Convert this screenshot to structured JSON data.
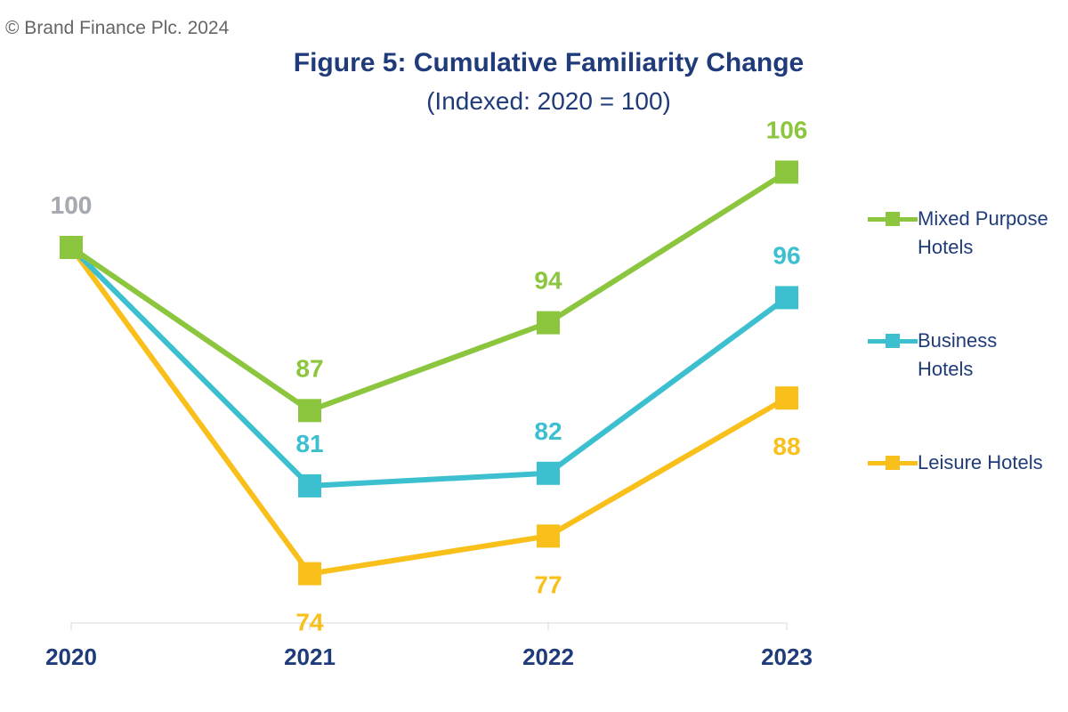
{
  "copyright": "© Brand Finance Plc. 2024",
  "chart_data": {
    "type": "line",
    "title": "Figure 5: Cumulative Familiarity Change",
    "subtitle": "(Indexed: 2020 = 100)",
    "categories": [
      "2020",
      "2021",
      "2022",
      "2023"
    ],
    "ylim": [
      70,
      110
    ],
    "grid": false,
    "legend_position": "right",
    "series": [
      {
        "name": "Mixed Purpose Hotels",
        "color": "#8cc63f",
        "values": [
          100,
          87,
          94,
          106
        ],
        "label_pos": [
          "above",
          "above",
          "above",
          "above"
        ]
      },
      {
        "name": "Business Hotels",
        "color": "#3cc0d0",
        "values": [
          100,
          81,
          82,
          96
        ],
        "label_pos": [
          "none",
          "above",
          "above",
          "above"
        ]
      },
      {
        "name": "Leisure Hotels",
        "color": "#f9c01b",
        "values": [
          100,
          74,
          77,
          88
        ],
        "label_pos": [
          "none",
          "below",
          "below",
          "below"
        ]
      }
    ],
    "start_label": {
      "text": "100",
      "color": "#a7a9b4"
    }
  }
}
